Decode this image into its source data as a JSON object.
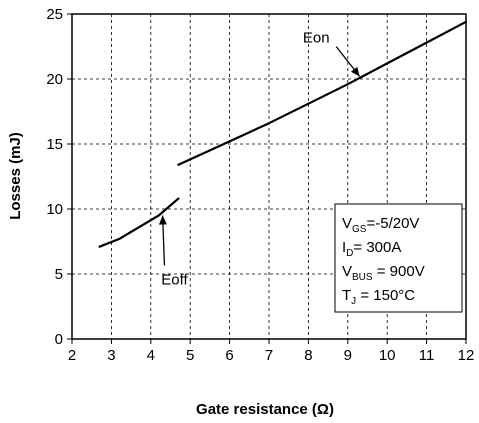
{
  "chart_data": {
    "type": "line",
    "xlabel": "Gate resistance (Ω)",
    "ylabel": "Losses (mJ)",
    "xlim": [
      2,
      12
    ],
    "ylim": [
      0,
      25
    ],
    "xticks": [
      2,
      3,
      4,
      5,
      6,
      7,
      8,
      9,
      10,
      11,
      12
    ],
    "yticks": [
      0,
      5,
      10,
      15,
      20,
      25
    ],
    "grid": "dashed",
    "series": [
      {
        "name": "Eon",
        "points": [
          [
            4.7,
            13.4
          ],
          [
            6.0,
            15.2
          ],
          [
            7.0,
            16.6
          ],
          [
            8.0,
            18.1
          ],
          [
            9.0,
            19.6
          ],
          [
            10.0,
            21.2
          ],
          [
            11.0,
            22.8
          ],
          [
            12.0,
            24.4
          ]
        ]
      },
      {
        "name": "Eoff",
        "points": [
          [
            2.7,
            7.1
          ],
          [
            3.2,
            7.7
          ],
          [
            3.7,
            8.6
          ],
          [
            4.2,
            9.5
          ],
          [
            4.7,
            10.8
          ]
        ]
      }
    ],
    "annotations": [
      {
        "text": "Eon",
        "label_at": [
          8.2,
          22.8
        ],
        "arrow_to": [
          9.3,
          20.2
        ]
      },
      {
        "text": "Eoff",
        "label_at": [
          4.6,
          4.2
        ],
        "arrow_to": [
          4.3,
          9.5
        ]
      }
    ],
    "conditions": [
      {
        "main": "V",
        "sub": "GS",
        "rest": "=-5/20V"
      },
      {
        "main": "I",
        "sub": "D",
        "rest": "= 300A"
      },
      {
        "main": "V",
        "sub": "BUS",
        "rest": " = 900V"
      },
      {
        "main": "T",
        "sub": "J",
        "rest": " = 150°C"
      }
    ]
  }
}
